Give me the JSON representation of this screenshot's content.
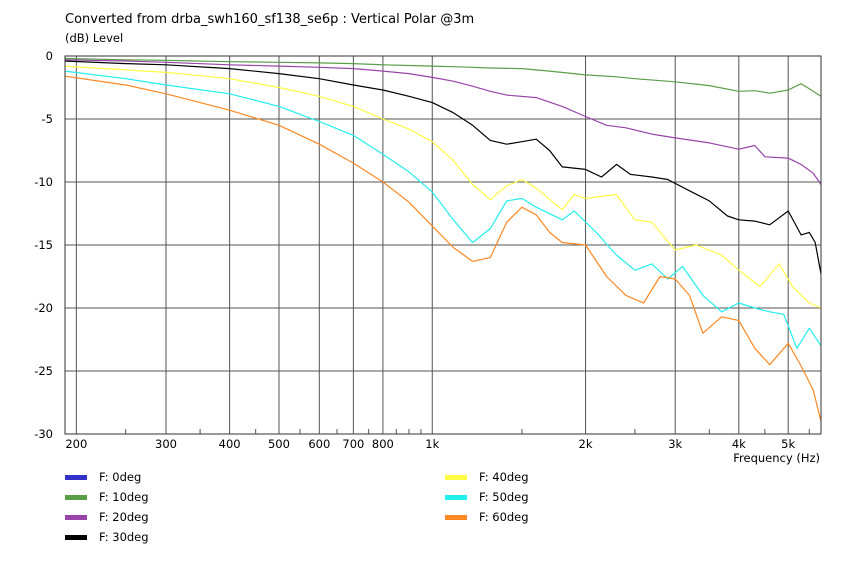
{
  "chart_data": {
    "type": "line",
    "title": "Converted from drba_swh160_sf138_se6p : Vertical Polar @3m",
    "ylabel_unit": "(dB)",
    "ylabel": "Level",
    "xlabel": "Frequency",
    "xlabel_unit": "(Hz)",
    "x_scale": "log",
    "xlim": [
      190,
      5800
    ],
    "ylim": [
      -30,
      0
    ],
    "grid": true,
    "legend_position": "bottom",
    "x_ticks": [
      {
        "value": 200,
        "label": "200"
      },
      {
        "value": 300,
        "label": "300"
      },
      {
        "value": 400,
        "label": "400"
      },
      {
        "value": 500,
        "label": "500"
      },
      {
        "value": 600,
        "label": "600"
      },
      {
        "value": 700,
        "label": "700"
      },
      {
        "value": 800,
        "label": "800"
      },
      {
        "value": 1000,
        "label": "1k"
      },
      {
        "value": 2000,
        "label": "2k"
      },
      {
        "value": 3000,
        "label": "3k"
      },
      {
        "value": 4000,
        "label": "4k"
      },
      {
        "value": 5000,
        "label": "5k"
      }
    ],
    "y_ticks": [
      0,
      -5,
      -10,
      -15,
      -20,
      -25,
      -30
    ],
    "series": [
      {
        "name": "F: 0deg",
        "color": "#3333cc",
        "points": []
      },
      {
        "name": "F: 10deg",
        "color": "#5a9e4a",
        "points": [
          [
            190,
            -0.2
          ],
          [
            250,
            -0.3
          ],
          [
            300,
            -0.35
          ],
          [
            400,
            -0.45
          ],
          [
            500,
            -0.5
          ],
          [
            600,
            -0.55
          ],
          [
            700,
            -0.6
          ],
          [
            800,
            -0.7
          ],
          [
            900,
            -0.75
          ],
          [
            1000,
            -0.8
          ],
          [
            1100,
            -0.85
          ],
          [
            1200,
            -0.9
          ],
          [
            1300,
            -0.95
          ],
          [
            1500,
            -1.0
          ],
          [
            1700,
            -1.2
          ],
          [
            2000,
            -1.5
          ],
          [
            2300,
            -1.65
          ],
          [
            2500,
            -1.8
          ],
          [
            3000,
            -2.05
          ],
          [
            3500,
            -2.35
          ],
          [
            4000,
            -2.8
          ],
          [
            4300,
            -2.75
          ],
          [
            4600,
            -2.95
          ],
          [
            5000,
            -2.7
          ],
          [
            5300,
            -2.2
          ],
          [
            5500,
            -2.6
          ],
          [
            5800,
            -3.2
          ]
        ]
      },
      {
        "name": "F: 20deg",
        "color": "#9944aa",
        "points": [
          [
            190,
            -0.3
          ],
          [
            250,
            -0.4
          ],
          [
            300,
            -0.5
          ],
          [
            400,
            -0.7
          ],
          [
            500,
            -0.8
          ],
          [
            600,
            -0.9
          ],
          [
            700,
            -1.0
          ],
          [
            800,
            -1.2
          ],
          [
            900,
            -1.4
          ],
          [
            1000,
            -1.7
          ],
          [
            1100,
            -2.0
          ],
          [
            1200,
            -2.4
          ],
          [
            1300,
            -2.8
          ],
          [
            1400,
            -3.1
          ],
          [
            1600,
            -3.3
          ],
          [
            1800,
            -4.0
          ],
          [
            2000,
            -4.8
          ],
          [
            2200,
            -5.5
          ],
          [
            2400,
            -5.7
          ],
          [
            2700,
            -6.2
          ],
          [
            3000,
            -6.5
          ],
          [
            3500,
            -6.9
          ],
          [
            4000,
            -7.4
          ],
          [
            4300,
            -7.1
          ],
          [
            4500,
            -8.0
          ],
          [
            5000,
            -8.1
          ],
          [
            5300,
            -8.6
          ],
          [
            5600,
            -9.3
          ],
          [
            5800,
            -10.2
          ]
        ]
      },
      {
        "name": "F: 30deg",
        "color": "#000000",
        "points": [
          [
            190,
            -0.4
          ],
          [
            250,
            -0.6
          ],
          [
            300,
            -0.7
          ],
          [
            400,
            -1.0
          ],
          [
            500,
            -1.4
          ],
          [
            600,
            -1.8
          ],
          [
            700,
            -2.3
          ],
          [
            800,
            -2.7
          ],
          [
            900,
            -3.2
          ],
          [
            1000,
            -3.7
          ],
          [
            1100,
            -4.5
          ],
          [
            1200,
            -5.5
          ],
          [
            1300,
            -6.7
          ],
          [
            1400,
            -7.0
          ],
          [
            1500,
            -6.8
          ],
          [
            1600,
            -6.6
          ],
          [
            1700,
            -7.5
          ],
          [
            1800,
            -8.8
          ],
          [
            2000,
            -9.0
          ],
          [
            2150,
            -9.6
          ],
          [
            2300,
            -8.6
          ],
          [
            2450,
            -9.4
          ],
          [
            2700,
            -9.6
          ],
          [
            2900,
            -9.8
          ],
          [
            3200,
            -10.7
          ],
          [
            3500,
            -11.5
          ],
          [
            3800,
            -12.7
          ],
          [
            4000,
            -13.0
          ],
          [
            4300,
            -13.1
          ],
          [
            4600,
            -13.4
          ],
          [
            5000,
            -12.3
          ],
          [
            5300,
            -14.2
          ],
          [
            5500,
            -14.0
          ],
          [
            5650,
            -14.8
          ],
          [
            5800,
            -17.3
          ]
        ]
      },
      {
        "name": "F: 40deg",
        "color": "#ffff44",
        "points": [
          [
            190,
            -0.8
          ],
          [
            250,
            -1.1
          ],
          [
            300,
            -1.3
          ],
          [
            400,
            -1.8
          ],
          [
            500,
            -2.5
          ],
          [
            600,
            -3.2
          ],
          [
            700,
            -4.0
          ],
          [
            800,
            -5.0
          ],
          [
            900,
            -5.8
          ],
          [
            1000,
            -6.8
          ],
          [
            1100,
            -8.3
          ],
          [
            1200,
            -10.2
          ],
          [
            1300,
            -11.4
          ],
          [
            1400,
            -10.3
          ],
          [
            1500,
            -9.8
          ],
          [
            1600,
            -10.5
          ],
          [
            1800,
            -12.2
          ],
          [
            1900,
            -11.0
          ],
          [
            2000,
            -11.3
          ],
          [
            2300,
            -11.0
          ],
          [
            2500,
            -13.0
          ],
          [
            2700,
            -13.2
          ],
          [
            3000,
            -15.4
          ],
          [
            3300,
            -15.0
          ],
          [
            3700,
            -15.8
          ],
          [
            4000,
            -17.0
          ],
          [
            4400,
            -18.3
          ],
          [
            4800,
            -16.5
          ],
          [
            5100,
            -18.3
          ],
          [
            5500,
            -19.6
          ],
          [
            5800,
            -20.0
          ]
        ]
      },
      {
        "name": "F: 50deg",
        "color": "#22eeee",
        "points": [
          [
            190,
            -1.2
          ],
          [
            250,
            -1.8
          ],
          [
            300,
            -2.3
          ],
          [
            400,
            -3.0
          ],
          [
            500,
            -4.0
          ],
          [
            600,
            -5.2
          ],
          [
            700,
            -6.3
          ],
          [
            800,
            -7.8
          ],
          [
            900,
            -9.2
          ],
          [
            1000,
            -10.8
          ],
          [
            1100,
            -13.0
          ],
          [
            1200,
            -14.8
          ],
          [
            1300,
            -13.7
          ],
          [
            1400,
            -11.5
          ],
          [
            1500,
            -11.3
          ],
          [
            1600,
            -12.0
          ],
          [
            1800,
            -13.0
          ],
          [
            1900,
            -12.3
          ],
          [
            2100,
            -14.0
          ],
          [
            2300,
            -15.8
          ],
          [
            2500,
            -17.0
          ],
          [
            2700,
            -16.5
          ],
          [
            2900,
            -17.7
          ],
          [
            3100,
            -16.7
          ],
          [
            3400,
            -19.0
          ],
          [
            3700,
            -20.3
          ],
          [
            4000,
            -19.6
          ],
          [
            4300,
            -20.0
          ],
          [
            4600,
            -20.3
          ],
          [
            4900,
            -20.5
          ],
          [
            5200,
            -23.2
          ],
          [
            5500,
            -21.6
          ],
          [
            5800,
            -23.0
          ]
        ]
      },
      {
        "name": "F: 60deg",
        "color": "#ff8822",
        "points": [
          [
            190,
            -1.6
          ],
          [
            250,
            -2.3
          ],
          [
            300,
            -3.0
          ],
          [
            400,
            -4.3
          ],
          [
            500,
            -5.5
          ],
          [
            600,
            -7.0
          ],
          [
            700,
            -8.5
          ],
          [
            800,
            -10.0
          ],
          [
            900,
            -11.6
          ],
          [
            1000,
            -13.5
          ],
          [
            1100,
            -15.2
          ],
          [
            1200,
            -16.3
          ],
          [
            1300,
            -16.0
          ],
          [
            1400,
            -13.2
          ],
          [
            1500,
            -12.0
          ],
          [
            1600,
            -12.6
          ],
          [
            1700,
            -14.0
          ],
          [
            1800,
            -14.8
          ],
          [
            2000,
            -15.0
          ],
          [
            2200,
            -17.5
          ],
          [
            2400,
            -19.0
          ],
          [
            2600,
            -19.6
          ],
          [
            2800,
            -17.5
          ],
          [
            3000,
            -17.7
          ],
          [
            3200,
            -19.0
          ],
          [
            3400,
            -22.0
          ],
          [
            3700,
            -20.7
          ],
          [
            4000,
            -21.0
          ],
          [
            4300,
            -23.2
          ],
          [
            4600,
            -24.5
          ],
          [
            5000,
            -22.8
          ],
          [
            5300,
            -24.6
          ],
          [
            5600,
            -26.5
          ],
          [
            5800,
            -29.0
          ]
        ]
      }
    ]
  }
}
